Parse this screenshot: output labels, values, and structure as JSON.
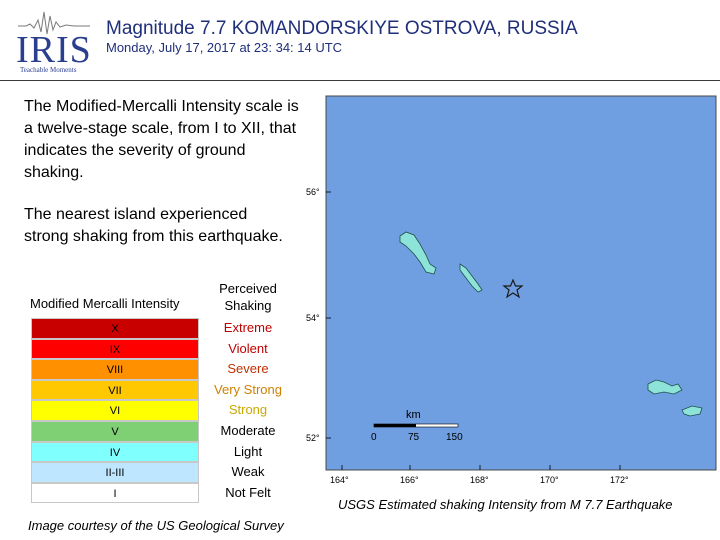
{
  "header": {
    "logo_text": "IRIS",
    "logo_sub": "Teachable Moments",
    "title": "Magnitude 7.7 KOMANDORSKIYE OSTROVA, RUSSIA",
    "subtitle": "Monday,  July 17, 2017 at 23: 34: 14 UTC"
  },
  "body": {
    "paragraph1": "The Modified-Mercalli Intensity scale is a twelve-stage scale, from I to XII, that indicates the severity of ground shaking.",
    "paragraph2": "The nearest island experienced strong shaking from this earthquake."
  },
  "legend": {
    "intensity_header": "Modified Mercalli Intensity",
    "shaking_header": "Perceived Shaking",
    "rows": [
      {
        "intensity": "X",
        "shaking": "Extreme",
        "color": "#c80000",
        "text_color": "#c00000"
      },
      {
        "intensity": "IX",
        "shaking": "Violent",
        "color": "#ff0000",
        "text_color": "#c00000"
      },
      {
        "intensity": "VIII",
        "shaking": "Severe",
        "color": "#ff9000",
        "text_color": "#c03000"
      },
      {
        "intensity": "VII",
        "shaking": "Very Strong",
        "color": "#ffc800",
        "text_color": "#d08000"
      },
      {
        "intensity": "VI",
        "shaking": "Strong",
        "color": "#ffff00",
        "text_color": "#c8a800"
      },
      {
        "intensity": "V",
        "shaking": "Moderate",
        "color": "#7fcf75",
        "text_color": "#000000"
      },
      {
        "intensity": "IV",
        "shaking": "Light",
        "color": "#80ffff",
        "text_color": "#000000"
      },
      {
        "intensity": "II-III",
        "shaking": "Weak",
        "color": "#bfe6ff",
        "text_color": "#000000"
      },
      {
        "intensity": "I",
        "shaking": "Not Felt",
        "color": "#ffffff",
        "text_color": "#000000"
      }
    ]
  },
  "credit": "Image courtesy of the US Geological Survey",
  "map": {
    "caption": "USGS Estimated shaking Intensity from M 7.7 Earthquake",
    "ocean_color": "#6f9fe0",
    "lat_labels": [
      "56°",
      "54°",
      "52°"
    ],
    "lon_labels": [
      "164°",
      "166°",
      "168°",
      "170°",
      "172°"
    ],
    "scale_unit": "km",
    "scale_ticks": [
      "0",
      "75",
      "150"
    ],
    "epicenter_icon": "star-icon"
  }
}
